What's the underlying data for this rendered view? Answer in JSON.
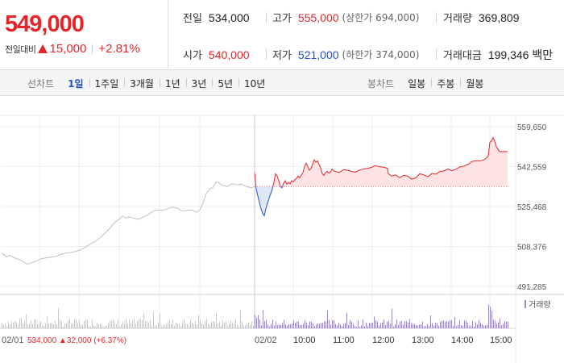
{
  "quote": {
    "price": "549,000",
    "change_label": "전일대비",
    "change_value": "15,000",
    "change_pct": "+2.81%"
  },
  "stats": {
    "prev_close": {
      "label": "전일",
      "value": "534,000"
    },
    "high": {
      "label": "고가",
      "value": "555,000",
      "sub": "(상한가 694,000)"
    },
    "volume": {
      "label": "거래량",
      "value": "369,809"
    },
    "open": {
      "label": "시가",
      "value": "540,000"
    },
    "low": {
      "label": "저가",
      "value": "521,000",
      "sub": "(하한가 374,000)"
    },
    "trade_value": {
      "label": "거래대금",
      "value": "199,346 백만"
    }
  },
  "line_tabs": {
    "title": "선차트",
    "items": [
      "1일",
      "1주일",
      "3개월",
      "1년",
      "3년",
      "5년",
      "10년"
    ],
    "active": "1일"
  },
  "candle_tabs": {
    "title": "봉차트",
    "items": [
      "일봉",
      "주봉",
      "월봉"
    ]
  },
  "colors": {
    "up": "#e4262b",
    "down": "#2151c5",
    "prev_line": "#c0c0c0",
    "volume_prev": "#c8c8c8",
    "volume_today": "#9a88c8"
  },
  "chart_data": {
    "type": "line",
    "y_ticks": [
      "559,650",
      "542,559",
      "525,468",
      "508,376",
      "491,285"
    ],
    "ylim": [
      491285,
      559650
    ],
    "base_price": 534000,
    "prev_day": {
      "date": "02/01",
      "summary": {
        "close": "534,000",
        "change": "32,000",
        "pct": "(+6.37%)"
      },
      "points": [
        [
          0,
          505500
        ],
        [
          6,
          504000
        ],
        [
          10,
          504500
        ],
        [
          14,
          503800
        ],
        [
          20,
          503000
        ],
        [
          26,
          502000
        ],
        [
          32,
          500800
        ],
        [
          38,
          501500
        ],
        [
          44,
          502300
        ],
        [
          50,
          503200
        ],
        [
          56,
          503500
        ],
        [
          62,
          503800
        ],
        [
          68,
          504200
        ],
        [
          74,
          505000
        ],
        [
          80,
          505500
        ],
        [
          86,
          505800
        ],
        [
          92,
          506200
        ],
        [
          98,
          507000
        ],
        [
          104,
          508000
        ],
        [
          110,
          509500
        ],
        [
          116,
          510500
        ],
        [
          122,
          512000
        ],
        [
          128,
          514000
        ],
        [
          134,
          516000
        ],
        [
          140,
          518500
        ],
        [
          146,
          520000
        ],
        [
          150,
          521500
        ],
        [
          154,
          520500
        ],
        [
          158,
          521000
        ],
        [
          164,
          520500
        ],
        [
          170,
          520000
        ],
        [
          176,
          521000
        ],
        [
          182,
          522000
        ],
        [
          188,
          523500
        ],
        [
          194,
          524000
        ],
        [
          200,
          523800
        ],
        [
          206,
          524500
        ],
        [
          212,
          525200
        ],
        [
          218,
          524800
        ],
        [
          224,
          523500
        ],
        [
          230,
          523800
        ],
        [
          236,
          524000
        ],
        [
          242,
          523000
        ],
        [
          246,
          524000
        ],
        [
          250,
          527000
        ],
        [
          254,
          531000
        ],
        [
          258,
          533000
        ],
        [
          262,
          533500
        ],
        [
          266,
          536000
        ],
        [
          270,
          535500
        ],
        [
          274,
          534500
        ],
        [
          280,
          534000
        ],
        [
          286,
          535200
        ],
        [
          292,
          534800
        ],
        [
          298,
          535000
        ],
        [
          304,
          534000
        ],
        [
          310,
          533500
        ],
        [
          314,
          534000
        ]
      ]
    },
    "today": {
      "date": "02/02",
      "x_ticks": [
        "10:00",
        "11:00",
        "12:00",
        "13:00",
        "14:00",
        "15:00"
      ],
      "points": [
        [
          0,
          540000
        ],
        [
          2,
          533000
        ],
        [
          4,
          530000
        ],
        [
          6,
          527000
        ],
        [
          8,
          524500
        ],
        [
          10,
          522500
        ],
        [
          12,
          521500
        ],
        [
          14,
          524500
        ],
        [
          16,
          527000
        ],
        [
          18,
          529000
        ],
        [
          20,
          531000
        ],
        [
          22,
          533000
        ],
        [
          24,
          536000
        ],
        [
          26,
          539500
        ],
        [
          28,
          538500
        ],
        [
          30,
          536500
        ],
        [
          32,
          534000
        ],
        [
          34,
          533500
        ],
        [
          36,
          535500
        ],
        [
          38,
          536500
        ],
        [
          40,
          535000
        ],
        [
          42,
          535800
        ],
        [
          44,
          535200
        ],
        [
          46,
          536500
        ],
        [
          48,
          536000
        ],
        [
          50,
          537000
        ],
        [
          52,
          537500
        ],
        [
          54,
          538500
        ],
        [
          56,
          537800
        ],
        [
          58,
          539000
        ],
        [
          60,
          540000
        ],
        [
          62,
          542500
        ],
        [
          64,
          544000
        ],
        [
          66,
          542500
        ],
        [
          68,
          541000
        ],
        [
          70,
          541800
        ],
        [
          72,
          543500
        ],
        [
          74,
          545500
        ],
        [
          76,
          544500
        ],
        [
          78,
          545000
        ],
        [
          80,
          543500
        ],
        [
          82,
          542000
        ],
        [
          84,
          539500
        ],
        [
          86,
          538800
        ],
        [
          88,
          540000
        ],
        [
          90,
          540500
        ],
        [
          92,
          539800
        ],
        [
          94,
          540000
        ],
        [
          96,
          541500
        ],
        [
          98,
          540800
        ],
        [
          100,
          540500
        ],
        [
          105,
          540000
        ],
        [
          110,
          541200
        ],
        [
          115,
          541000
        ],
        [
          120,
          540500
        ],
        [
          125,
          540200
        ],
        [
          130,
          541000
        ],
        [
          135,
          541500
        ],
        [
          140,
          541800
        ],
        [
          145,
          542200
        ],
        [
          150,
          543000
        ],
        [
          155,
          542500
        ],
        [
          160,
          542300
        ],
        [
          165,
          541800
        ],
        [
          166,
          539500
        ],
        [
          170,
          538500
        ],
        [
          175,
          539000
        ],
        [
          180,
          537800
        ],
        [
          185,
          538800
        ],
        [
          190,
          538500
        ],
        [
          195,
          537200
        ],
        [
          200,
          537700
        ],
        [
          205,
          539500
        ],
        [
          210,
          539000
        ],
        [
          215,
          538200
        ],
        [
          220,
          539600
        ],
        [
          225,
          539300
        ],
        [
          230,
          540500
        ],
        [
          235,
          540700
        ],
        [
          240,
          541500
        ],
        [
          245,
          540800
        ],
        [
          250,
          541500
        ],
        [
          255,
          542400
        ],
        [
          260,
          542800
        ],
        [
          265,
          543500
        ],
        [
          270,
          544800
        ],
        [
          275,
          545000
        ],
        [
          280,
          545000
        ],
        [
          285,
          545500
        ],
        [
          290,
          547000
        ],
        [
          292,
          553000
        ],
        [
          294,
          553500
        ],
        [
          296,
          555000
        ],
        [
          298,
          553500
        ],
        [
          300,
          551000
        ],
        [
          304,
          549000
        ],
        [
          314,
          549000
        ]
      ]
    },
    "volume": {
      "label": "거래량"
    }
  }
}
